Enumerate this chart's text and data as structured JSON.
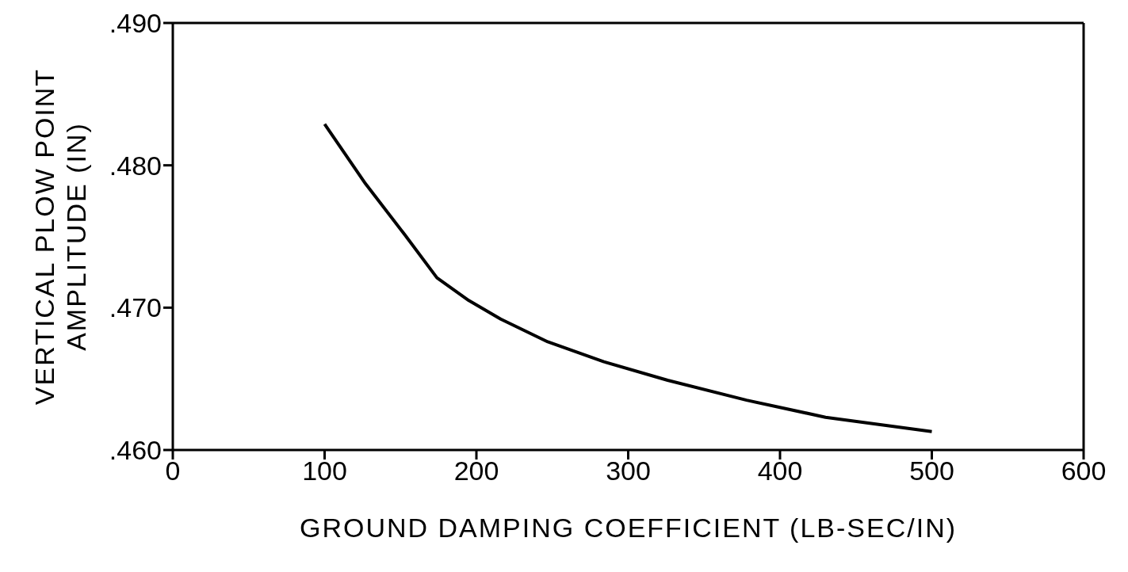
{
  "chart_data": {
    "type": "line",
    "xlabel": "GROUND DAMPING COEFFICIENT (LB-SEC/IN)",
    "ylabel": "VERTICAL PLOW POINT\nAMPLITUDE (IN)",
    "x": [
      100,
      127,
      153,
      174,
      195,
      216,
      247,
      284,
      326,
      378,
      430,
      500
    ],
    "series": [
      {
        "color": "#000000",
        "values": [
          0.4829,
          0.4787,
          0.4751,
          0.4721,
          0.4705,
          0.4692,
          0.4676,
          0.4662,
          0.4649,
          0.4635,
          0.4623,
          0.4613
        ]
      }
    ],
    "xlim": [
      0,
      600
    ],
    "xticks": [
      0,
      100,
      200,
      300,
      400,
      500,
      600
    ],
    "ylim": [
      0.46,
      0.49
    ],
    "yticks": [
      {
        "value": 0.46,
        "label": ".460"
      },
      {
        "value": 0.47,
        "label": ".470"
      },
      {
        "value": 0.48,
        "label": ".480"
      },
      {
        "value": 0.49,
        "label": ".490"
      }
    ],
    "grid": false,
    "legend": false,
    "marker": "none",
    "line_style": "solid"
  }
}
